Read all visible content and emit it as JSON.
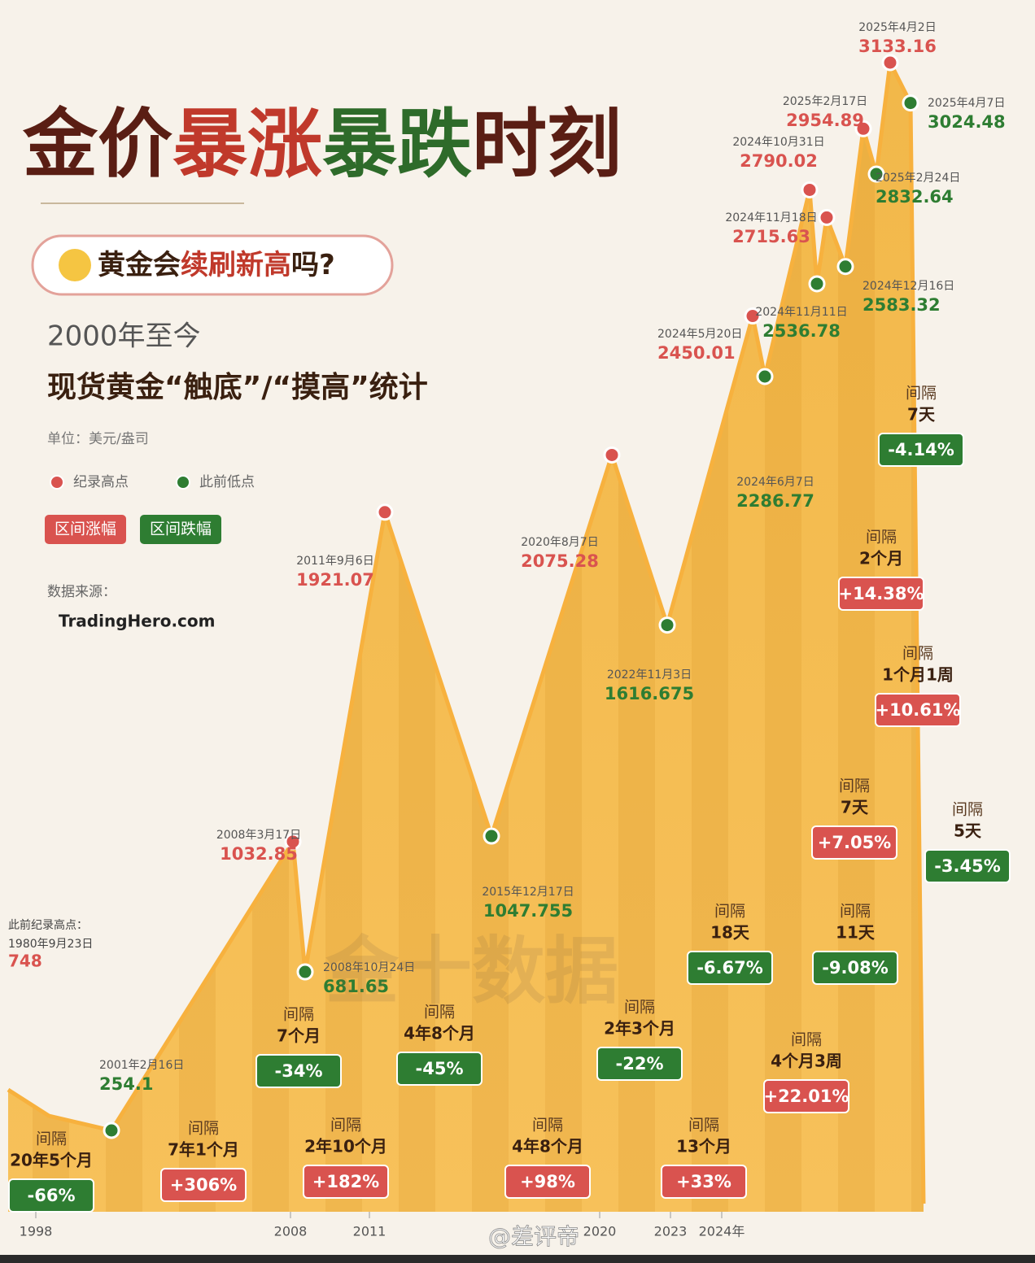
{
  "title_parts": [
    "金价",
    "暴涨",
    "暴跌",
    "时刻"
  ],
  "question_parts": [
    "黄金会",
    "续刷新高",
    "吗?"
  ],
  "subtitle": "2000年至今",
  "heading": "现货黄金“触底”/“摸高”统计",
  "unit": "单位：美元/盎司",
  "tags": [
    "区间涨幅",
    "区间跌幅"
  ],
  "source_label": "数据来源：",
  "source": "TradingHero.com",
  "watermark": "金十数据",
  "footer": "@差评帝",
  "chart_data": {
    "type": "line",
    "prior_high": {
      "label": "此前纪录高点：",
      "date": "1980年9月23日",
      "value": 748
    },
    "series": [
      {
        "name": "纪录高点",
        "color": "#d9534f",
        "x": [
          "2008年3月17日",
          "2011年9月6日",
          "2020年8月7日",
          "2024年5月20日",
          "2024年10月31日",
          "2024年11月18日",
          "2025年2月17日",
          "2025年4月2日"
        ],
        "values": [
          1032.85,
          1921.07,
          2075.28,
          2450.01,
          2790.02,
          2715.63,
          2954.89,
          3133.16
        ]
      },
      {
        "name": "此前低点",
        "color": "#2e7d32",
        "x": [
          "2001年2月16日",
          "2008年10月24日",
          "2015年12月17日",
          "2022年11月3日",
          "2024年6月7日",
          "2024年11月11日",
          "2024年12月16日",
          "2025年2月24日",
          "2025年4月7日"
        ],
        "values": [
          254.1,
          681.65,
          1047.755,
          1616.675,
          2286.77,
          2536.78,
          2583.32,
          2832.64,
          3024.48
        ]
      }
    ],
    "intervals": [
      {
        "label": "间隔",
        "duration": "20年5个月",
        "change": {
          "value": -66,
          "label": "-66%"
        }
      },
      {
        "label": "间隔",
        "duration": "7年1个月",
        "change": {
          "value": 306,
          "label": "+306%"
        }
      },
      {
        "label": "间隔",
        "duration": "7个月",
        "change": {
          "value": -34,
          "label": "-34%"
        }
      },
      {
        "label": "间隔",
        "duration": "2年10个月",
        "change": {
          "value": 182,
          "label": "+182%"
        }
      },
      {
        "label": "间隔",
        "duration": "4年8个月",
        "change": {
          "value": -45,
          "label": "-45%"
        }
      },
      {
        "label": "间隔",
        "duration": "4年8个月",
        "change": {
          "value": 98,
          "label": "+98%"
        }
      },
      {
        "label": "间隔",
        "duration": "2年3个月",
        "change": {
          "value": -22,
          "label": "-22%"
        }
      },
      {
        "label": "间隔",
        "duration": "13个月",
        "change": {
          "value": 33,
          "label": "+33%"
        }
      },
      {
        "label": "间隔",
        "duration": "18天",
        "change": {
          "value": -6.67,
          "label": "-6.67%"
        }
      },
      {
        "label": "间隔",
        "duration": "4个月3周",
        "change": {
          "value": 22.01,
          "label": "+22.01%"
        }
      },
      {
        "label": "间隔",
        "duration": "7天",
        "change": {
          "value": 7.05,
          "label": "+7.05%"
        }
      },
      {
        "label": "间隔",
        "duration": "11天",
        "change": {
          "value": -9.08,
          "label": "-9.08%"
        }
      },
      {
        "label": "间隔",
        "duration": "2个月",
        "change": {
          "value": 14.38,
          "label": "+14.38%"
        }
      },
      {
        "label": "间隔",
        "duration": "1个月1周",
        "change": {
          "value": 10.61,
          "label": "+10.61%"
        }
      },
      {
        "label": "间隔",
        "duration": "7天",
        "change": {
          "value": -4.14,
          "label": "-4.14%"
        }
      },
      {
        "label": "间隔",
        "duration": "5天",
        "change": {
          "value": -3.45,
          "label": "-3.45%"
        }
      }
    ],
    "x_axis_labels": [
      "1998",
      "2008",
      "2011",
      "2020",
      "2023",
      "2024年"
    ]
  }
}
